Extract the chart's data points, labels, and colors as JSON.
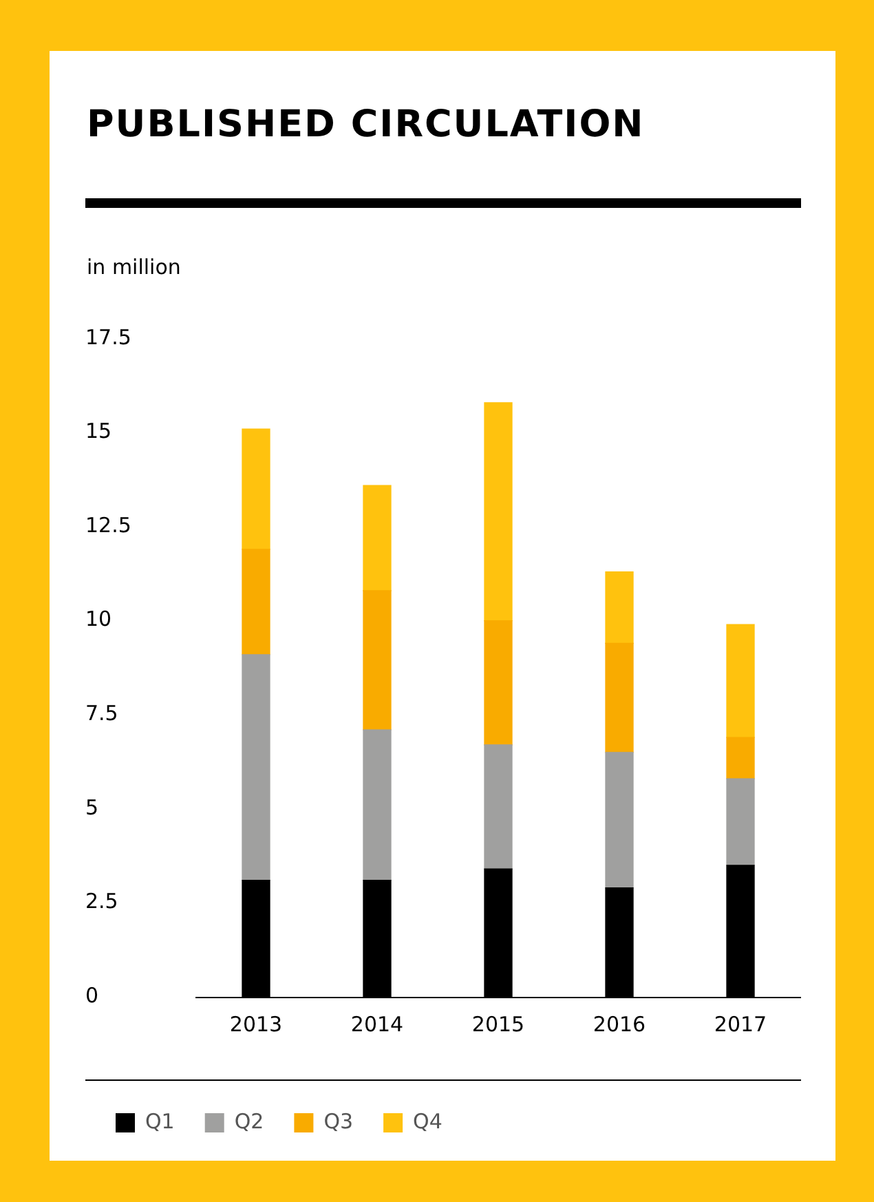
{
  "chart_data": {
    "type": "bar",
    "title": "PUBLISHED CIRCULATION",
    "ylabel": "in million",
    "stacked": true,
    "categories": [
      "2013",
      "2014",
      "2015",
      "2016",
      "2017"
    ],
    "series": [
      {
        "name": "Q1",
        "color": "#000000",
        "values": [
          3.1,
          3.1,
          3.4,
          2.9,
          3.5
        ]
      },
      {
        "name": "Q2",
        "color": "#a0a09f",
        "values": [
          6.0,
          4.0,
          3.3,
          3.6,
          2.3
        ]
      },
      {
        "name": "Q3",
        "color": "#f9ab00",
        "values": [
          2.8,
          3.7,
          3.3,
          2.9,
          1.1
        ]
      },
      {
        "name": "Q4",
        "color": "#ffc20e",
        "values": [
          3.2,
          2.8,
          5.8,
          1.9,
          3.0
        ]
      }
    ],
    "ylim": [
      0,
      17.5
    ],
    "yticks": [
      0,
      2.5,
      5,
      7.5,
      10,
      12.5,
      15,
      17.5
    ],
    "grid": false,
    "legend": "bottom left"
  }
}
